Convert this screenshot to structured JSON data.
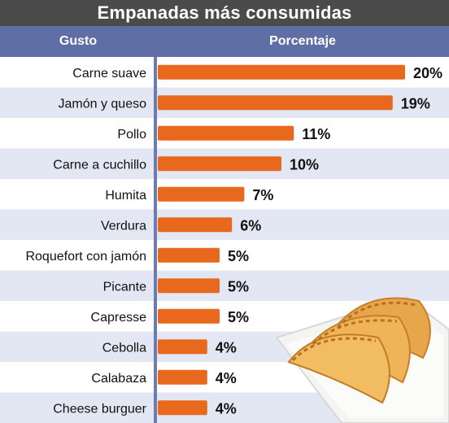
{
  "title": "Empanadas más consumidas",
  "headers": {
    "gusto": "Gusto",
    "porcentaje": "Porcentaje"
  },
  "colors": {
    "bar": "#e8681e",
    "header": "#5f6fa6",
    "title_bg": "#4b4b4b",
    "stripe": "#e3e7f3"
  },
  "chart_data": {
    "type": "bar",
    "orientation": "horizontal",
    "title": "Empanadas más consumidas",
    "xlabel": "Porcentaje",
    "ylabel": "Gusto",
    "xlim": [
      0,
      20
    ],
    "categories": [
      "Carne suave",
      "Jamón y queso",
      "Pollo",
      "Carne a cuchillo",
      "Humita",
      "Verdura",
      "Roquefort con jamón",
      "Picante",
      "Capresse",
      "Cebolla",
      "Calabaza",
      "Cheese burguer"
    ],
    "values": [
      20,
      19,
      11,
      10,
      7,
      6,
      5,
      5,
      5,
      4,
      4,
      4
    ],
    "value_labels": [
      "20%",
      "19%",
      "11%",
      "10%",
      "7%",
      "6%",
      "5%",
      "5%",
      "5%",
      "4%",
      "4%",
      "4%"
    ]
  }
}
